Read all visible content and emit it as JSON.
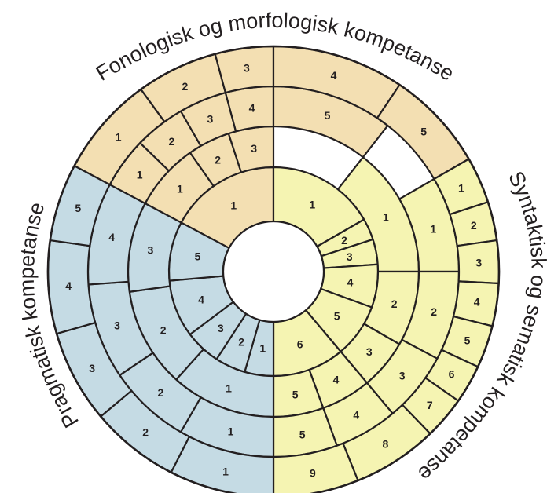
{
  "colors": {
    "fonologisk": "#f3dfb2",
    "syntaktisk": "#f5f4b2",
    "pragmatisk": "#c5dbe4",
    "outline": "#231f20",
    "background": "#ffffff"
  },
  "labels": {
    "fonologisk": "Fonologisk og morfologisk  kompetanse",
    "syntaktisk": "Syntaktisk og sematisk kompetanse",
    "pragmatisk": "Pragmatisk kompetanse"
  },
  "rings": {
    "fonologisk": [
      [
        "1"
      ],
      [
        "1",
        "2",
        "3"
      ],
      [
        "1",
        "2",
        "3",
        "4",
        "5"
      ],
      [
        "1",
        "2",
        "3",
        "4",
        "5"
      ]
    ],
    "syntaktisk": [
      [
        "1",
        "2",
        "3",
        "4",
        "5",
        "6"
      ],
      [
        "1",
        "2",
        "3",
        "4",
        "5"
      ],
      [
        "1",
        "2",
        "3",
        "4",
        "5"
      ],
      [
        "1",
        "2",
        "3",
        "4",
        "5",
        "6",
        "7",
        "8",
        "9"
      ]
    ],
    "pragmatisk": [
      [
        "1",
        "2",
        "3",
        "4",
        "5"
      ],
      [
        "1",
        "2",
        "3"
      ],
      [
        "1",
        "2",
        "3",
        "4"
      ],
      [
        "1",
        "2",
        "3",
        "4",
        "5"
      ]
    ]
  }
}
